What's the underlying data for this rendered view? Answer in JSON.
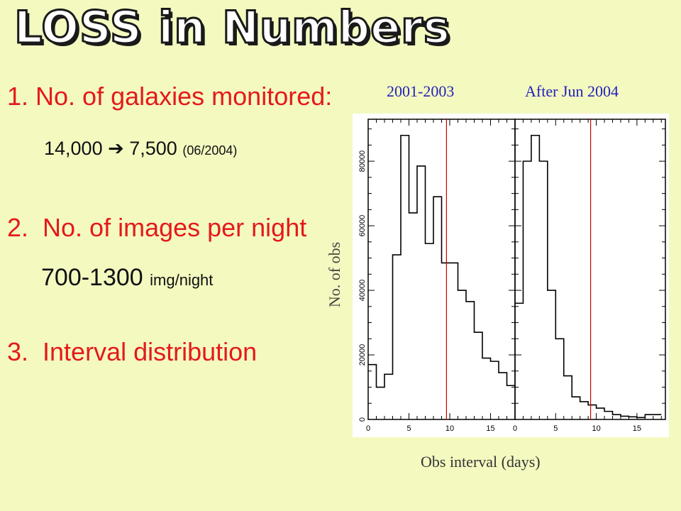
{
  "title": "LOSS in Numbers",
  "items": {
    "item1": "1. No. of galaxies monitored:",
    "item1_value_main": "14,000",
    "item1_value_arrow": "➔",
    "item1_value_next": "7,500",
    "item1_value_paren": "(06/2004)",
    "item2": "2.  No. of images per night",
    "item2_value_main": "700-1300",
    "item2_value_unit": "img/night",
    "item3": "3.  Interval distribution"
  },
  "chart_labels": {
    "period_left": "2001-2003",
    "period_right": "After Jun 2004",
    "ylabel": "No. of obs",
    "xlabel": "Obs interval (days)"
  },
  "colors": {
    "background": "#f4f9c0",
    "item_text": "#e41a1a",
    "period_text": "#2222bb",
    "marker_line": "#cc0000"
  },
  "chart_data": {
    "type": "bar",
    "style": "step-histogram",
    "ylabel": "No. of obs",
    "xlabel": "Obs interval (days)",
    "ylim": [
      0,
      93000
    ],
    "yticks": [
      0,
      20000,
      40000,
      60000,
      80000
    ],
    "ytick_labels": [
      "0",
      "20000",
      "40000",
      "60000",
      "80000"
    ],
    "grid": false,
    "panels": [
      {
        "name": "2001-2003",
        "xlim": [
          0,
          18
        ],
        "xticks": [
          0,
          5,
          10,
          15
        ],
        "bin_width": 1,
        "values": [
          17000,
          10000,
          14000,
          51000,
          88000,
          64000,
          78500,
          54500,
          69000,
          48500,
          48500,
          40000,
          36500,
          27000,
          19000,
          18000,
          14500,
          10500
        ],
        "marker_x": 9.6
      },
      {
        "name": "After Jun 2004",
        "xlim": [
          0,
          18.5
        ],
        "xticks": [
          0,
          5,
          10,
          15
        ],
        "bin_width": 1,
        "values": [
          36000,
          80000,
          88000,
          80000,
          40000,
          25000,
          13500,
          7000,
          5500,
          4500,
          3500,
          2500,
          1500,
          1000,
          800,
          600,
          1500,
          1500
        ],
        "marker_x": 9.3
      }
    ]
  }
}
